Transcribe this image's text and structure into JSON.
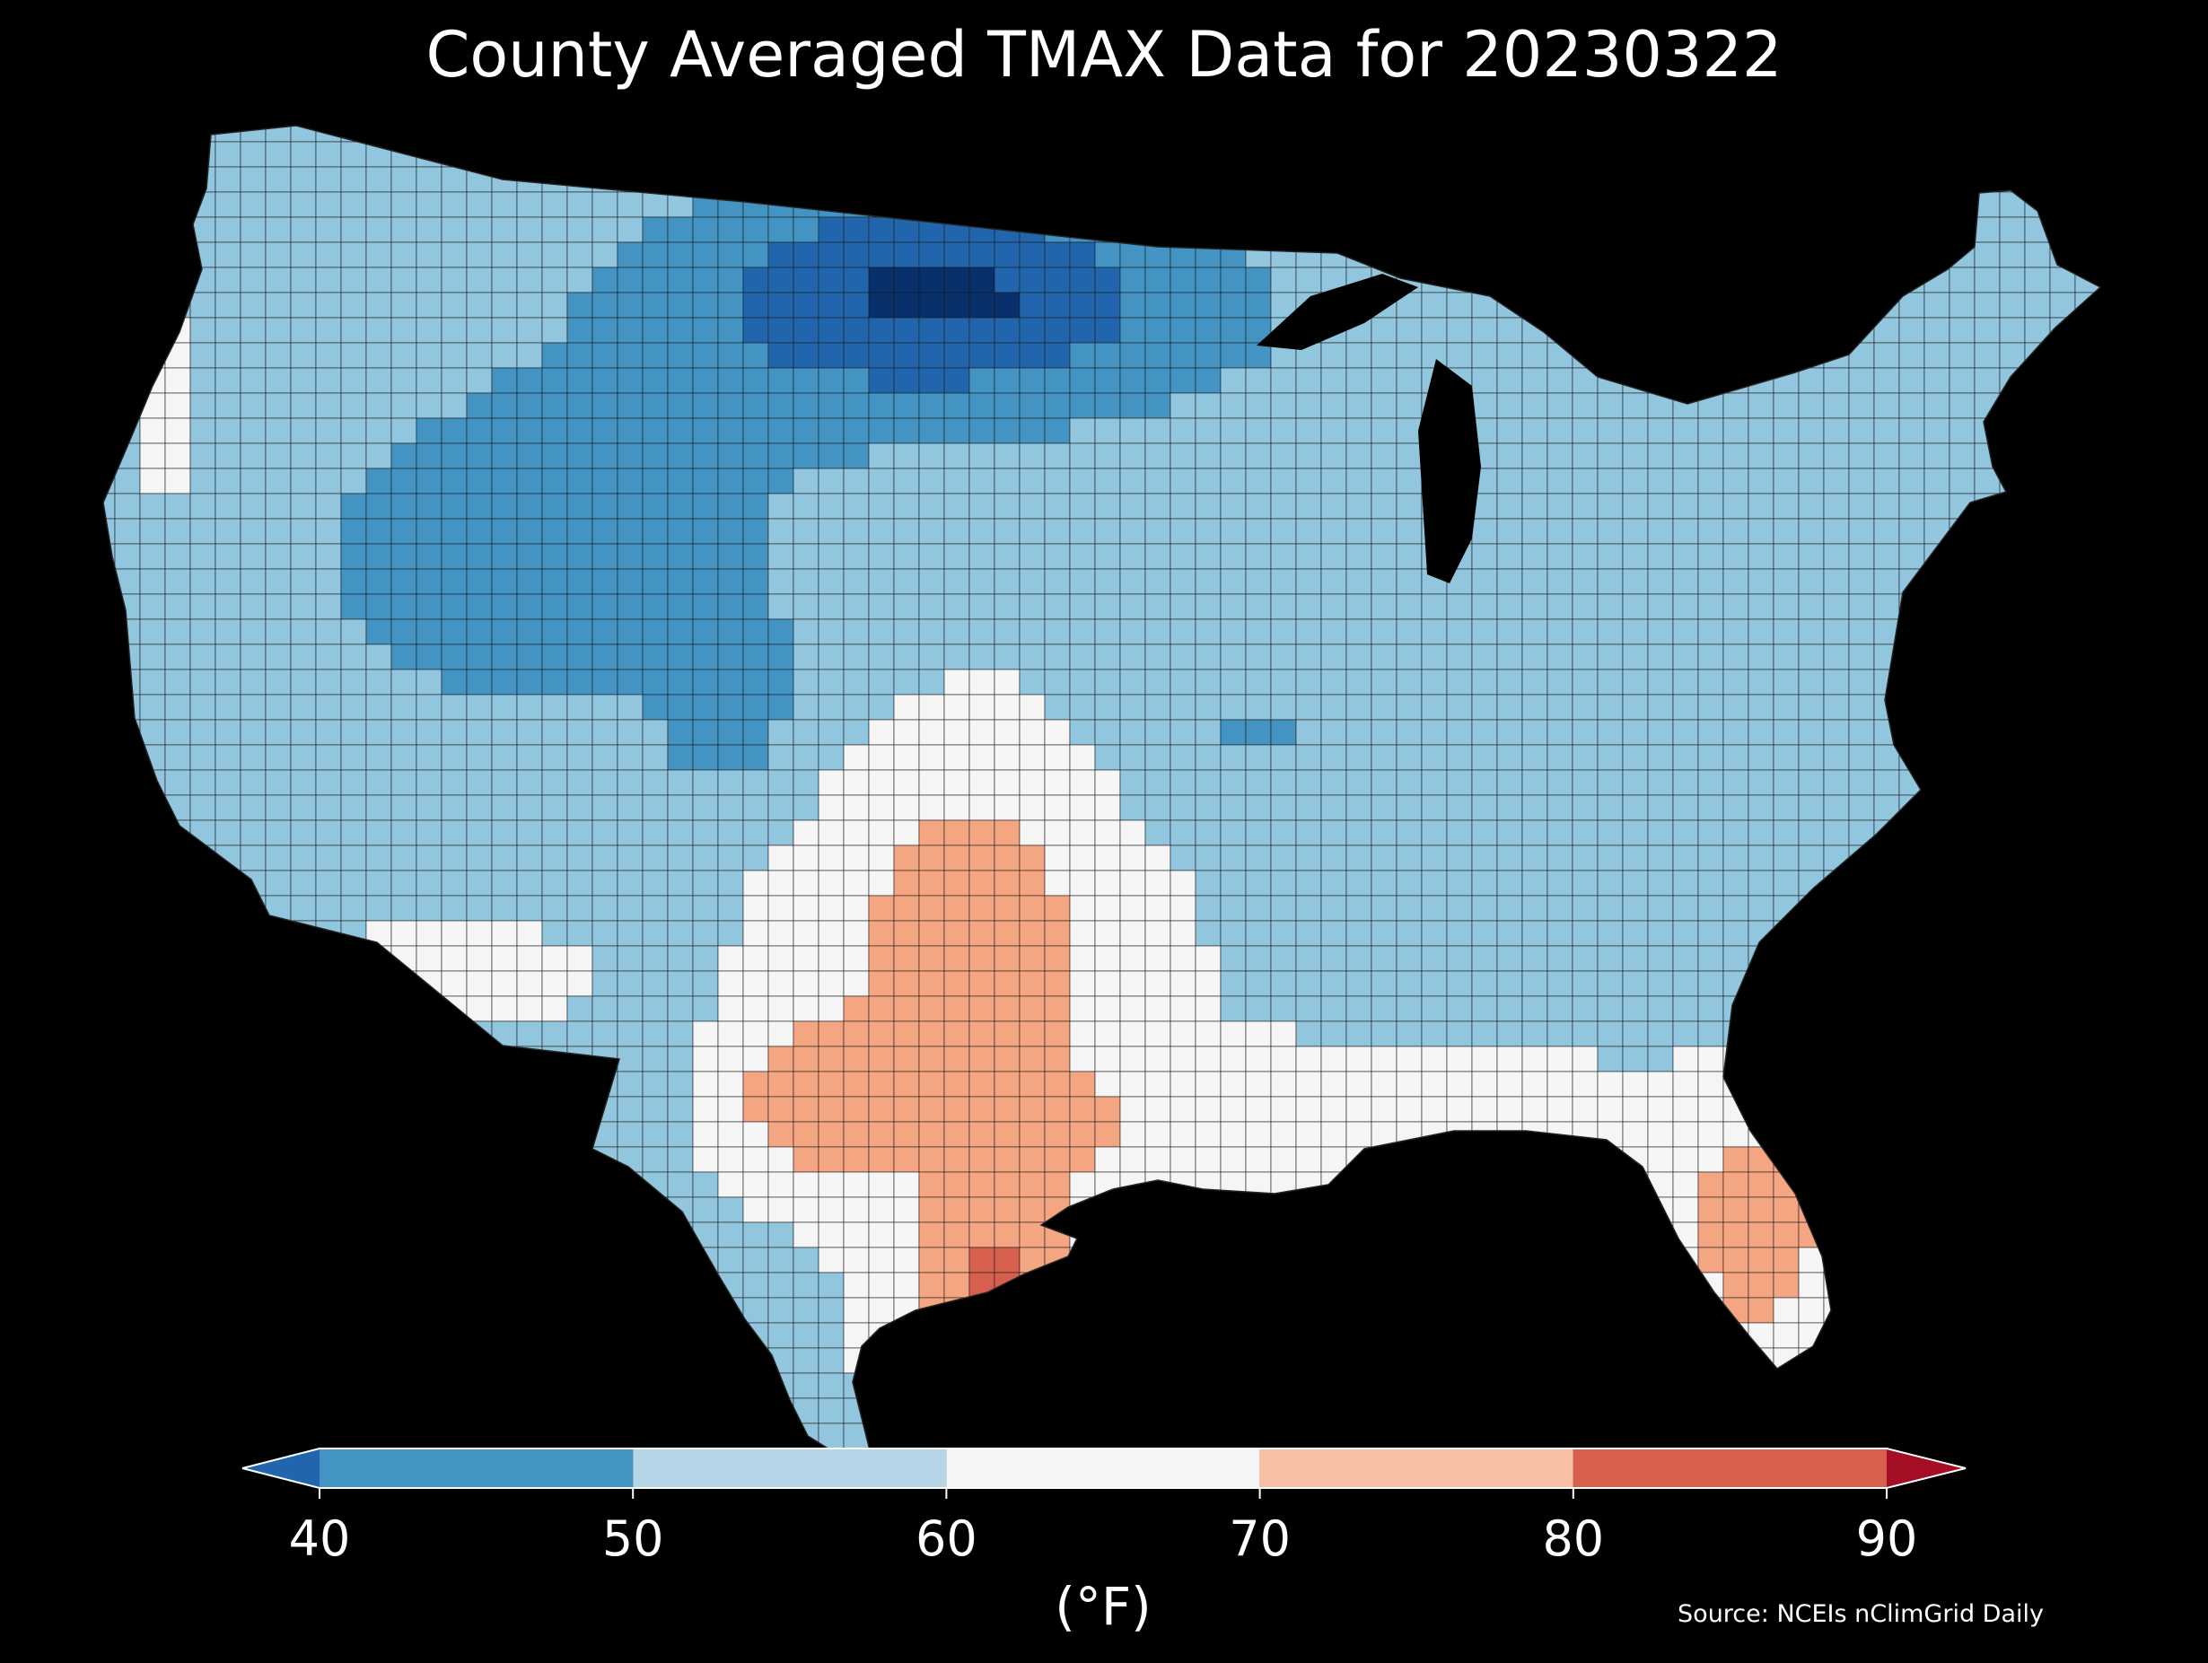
{
  "title": "County Averaged TMAX Data for 20230322",
  "source": "Source: NCEIs nClimGrid Daily",
  "legend": {
    "label": "(°F)",
    "ticks": [
      "40",
      "50",
      "60",
      "70",
      "80",
      "90"
    ],
    "bins": [
      {
        "from": 40,
        "to": 50,
        "color": "#4393c3"
      },
      {
        "from": 50,
        "to": 60,
        "color": "#b6d6e8"
      },
      {
        "from": 60,
        "to": 70,
        "color": "#f5f5f5"
      },
      {
        "from": 70,
        "to": 80,
        "color": "#f7c0a4"
      },
      {
        "from": 80,
        "to": 90,
        "color": "#d6604d"
      }
    ],
    "under_color": "#2166ac",
    "over_color": "#a50f26"
  },
  "colors": {
    "background": "#000000",
    "coldest": "#08306b",
    "cold": "#2166ac",
    "cool": "#4393c3",
    "mild": "#92c5de",
    "neutral": "#f5f5f5",
    "warm": "#f4a582",
    "hot": "#d6604d"
  }
}
